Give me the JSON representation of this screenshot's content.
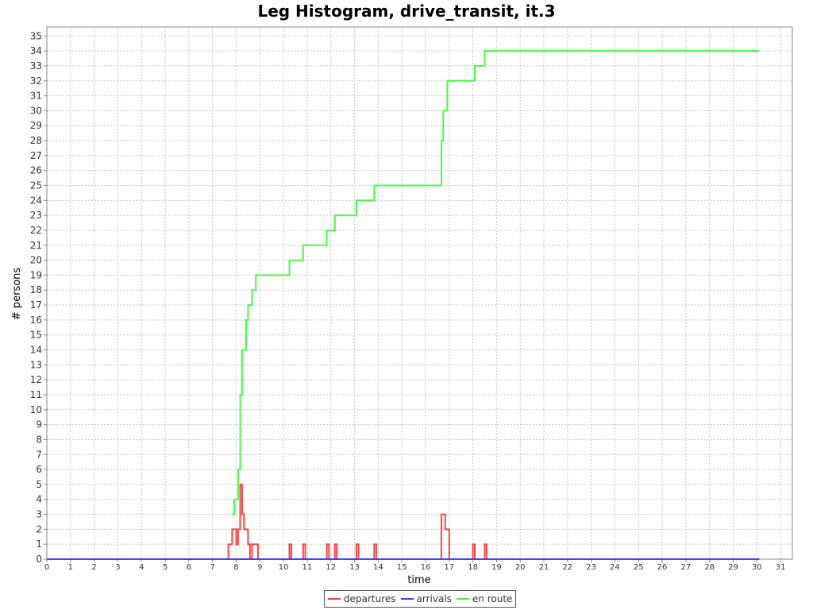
{
  "chart_data": {
    "type": "line",
    "title": "Leg Histogram, drive_transit, it.3",
    "xlabel": "time",
    "ylabel": "# persons",
    "xlim": [
      0,
      31.5
    ],
    "ylim": [
      0,
      35.6
    ],
    "x_ticks": [
      0,
      1,
      2,
      3,
      4,
      5,
      6,
      7,
      8,
      9,
      10,
      11,
      12,
      13,
      14,
      15,
      16,
      17,
      18,
      19,
      20,
      21,
      22,
      23,
      24,
      25,
      26,
      27,
      28,
      29,
      30,
      31
    ],
    "y_ticks": [
      0,
      1,
      2,
      3,
      4,
      5,
      6,
      7,
      8,
      9,
      10,
      11,
      12,
      13,
      14,
      15,
      16,
      17,
      18,
      19,
      20,
      21,
      22,
      23,
      24,
      25,
      26,
      27,
      28,
      29,
      30,
      31,
      32,
      33,
      34,
      35
    ],
    "grid": true,
    "legend_position": "bottom",
    "series": [
      {
        "name": "departures",
        "color": "#ff4040",
        "step": [
          [
            0,
            0
          ],
          [
            7.67,
            1
          ],
          [
            7.83,
            2
          ],
          [
            8.0,
            1
          ],
          [
            8.08,
            2
          ],
          [
            8.17,
            5
          ],
          [
            8.25,
            3
          ],
          [
            8.33,
            2
          ],
          [
            8.5,
            1
          ],
          [
            8.58,
            0
          ],
          [
            8.67,
            1
          ],
          [
            8.83,
            1
          ],
          [
            8.92,
            0
          ],
          [
            10.25,
            1
          ],
          [
            10.33,
            0
          ],
          [
            10.83,
            1
          ],
          [
            10.92,
            0
          ],
          [
            11.83,
            1
          ],
          [
            11.92,
            0
          ],
          [
            12.17,
            1
          ],
          [
            12.25,
            0
          ],
          [
            13.08,
            1
          ],
          [
            13.17,
            0
          ],
          [
            13.83,
            1
          ],
          [
            13.92,
            0
          ],
          [
            16.67,
            3
          ],
          [
            16.83,
            2
          ],
          [
            17.0,
            0
          ],
          [
            18.0,
            1
          ],
          [
            18.08,
            0
          ],
          [
            18.5,
            1
          ],
          [
            18.58,
            0
          ],
          [
            30.1,
            0
          ]
        ]
      },
      {
        "name": "arrivals",
        "color": "#4040ff",
        "step": [
          [
            0,
            0
          ],
          [
            30.1,
            0
          ]
        ]
      },
      {
        "name": "en route",
        "color": "#40ff40",
        "step": [
          [
            7.83,
            3
          ],
          [
            7.92,
            4
          ],
          [
            8.0,
            4
          ],
          [
            8.08,
            6
          ],
          [
            8.17,
            11
          ],
          [
            8.25,
            14
          ],
          [
            8.42,
            16
          ],
          [
            8.5,
            17
          ],
          [
            8.67,
            18
          ],
          [
            8.83,
            19
          ],
          [
            10.25,
            20
          ],
          [
            10.83,
            21
          ],
          [
            11.83,
            22
          ],
          [
            12.17,
            23
          ],
          [
            13.08,
            24
          ],
          [
            13.83,
            25
          ],
          [
            16.67,
            28
          ],
          [
            16.75,
            30
          ],
          [
            16.92,
            32
          ],
          [
            18.08,
            33
          ],
          [
            18.5,
            34
          ],
          [
            30.1,
            34
          ]
        ]
      }
    ]
  }
}
